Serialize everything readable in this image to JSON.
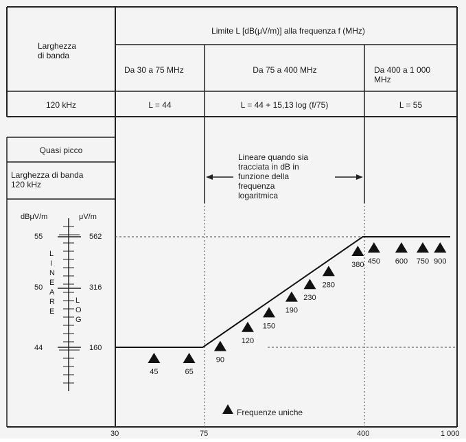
{
  "table": {
    "header_main": "Limite L [dB(μV/m)] alla frequenza f (MHz)",
    "bandwidth_label": "Larghezza\ndi banda",
    "ranges": [
      "Da 30 a 75 MHz",
      "Da 75 a 400 MHz",
      "Da 400 a 1 000\nMHz"
    ],
    "bandwidth_value": "120 kHz",
    "formulas": [
      "L = 44",
      "L = 44 + 15,13 log (f/75)",
      "L = 55"
    ]
  },
  "side_box": {
    "detector": "Quasi picco",
    "bandwidth": "Larghezza di banda\n120 kHz"
  },
  "scale": {
    "left_unit": "dBμV/m",
    "right_unit": "μV/m",
    "db_values": [
      "55",
      "50",
      "44"
    ],
    "uv_values": [
      "562",
      "316",
      "160"
    ],
    "lineare_letters": [
      "L",
      "I",
      "N",
      "E",
      "A",
      "R",
      "E"
    ],
    "log_letters": [
      "L",
      "O",
      "G"
    ]
  },
  "annotation": "Lineare quando sia\ntracciata in dB in\nfunzione della\nfrequenza\nlogaritmica",
  "legend": "Frequenze uniche",
  "x_axis_ticks": [
    "30",
    "75",
    "400",
    "1 000"
  ],
  "chart_data": {
    "type": "line",
    "x_scale": "log",
    "xlim": [
      30,
      1000
    ],
    "limit_line": {
      "x": [
        30,
        75,
        400,
        1000
      ],
      "y": [
        44,
        44,
        55,
        55
      ]
    },
    "single_frequencies": [
      {
        "label": "45",
        "f": 45
      },
      {
        "label": "65",
        "f": 65
      },
      {
        "label": "90",
        "f": 90
      },
      {
        "label": "120",
        "f": 120
      },
      {
        "label": "150",
        "f": 150
      },
      {
        "label": "190",
        "f": 190
      },
      {
        "label": "230",
        "f": 230
      },
      {
        "label": "280",
        "f": 280
      },
      {
        "label": "380",
        "f": 380
      },
      {
        "label": "450",
        "f": 450
      },
      {
        "label": "600",
        "f": 600
      },
      {
        "label": "750",
        "f": 750
      },
      {
        "label": "900",
        "f": 900
      }
    ]
  }
}
